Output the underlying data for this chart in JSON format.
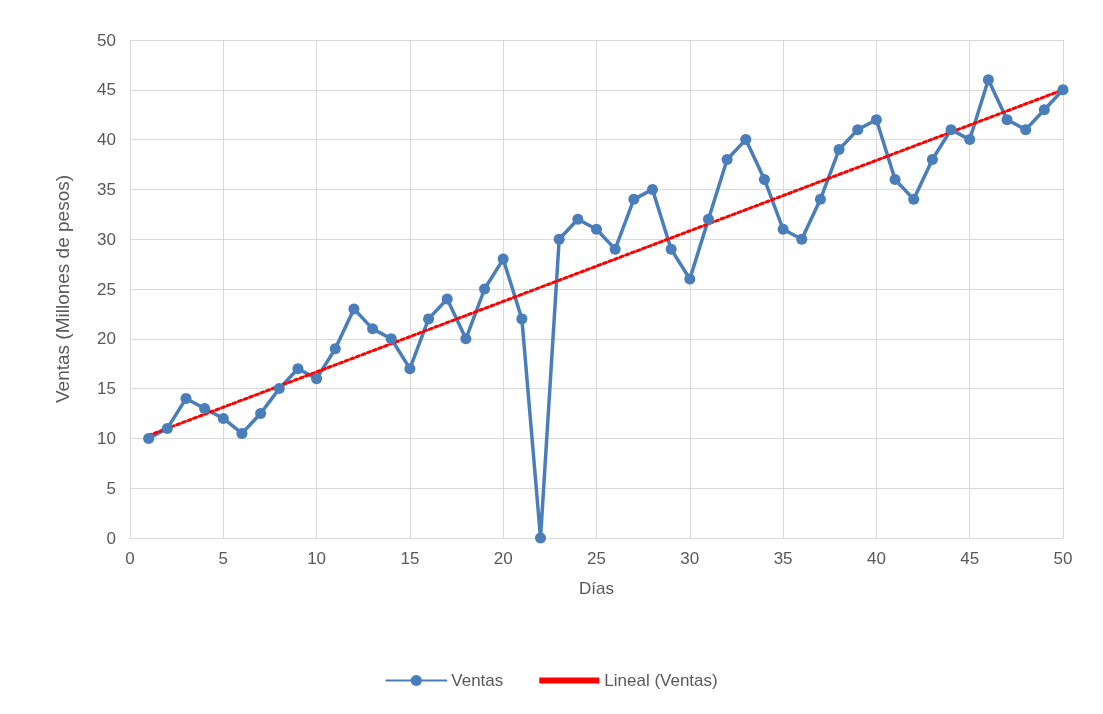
{
  "chart_data": {
    "type": "line",
    "xlabel": "Días",
    "ylabel": "Ventas (Millones de pesos)",
    "xlim": [
      0,
      50
    ],
    "xticks": [
      0,
      5,
      10,
      15,
      20,
      25,
      30,
      35,
      40,
      45,
      50
    ],
    "ylim": [
      0,
      50
    ],
    "yticks": [
      0,
      5,
      10,
      15,
      20,
      25,
      30,
      35,
      40,
      45,
      50
    ],
    "grid": true,
    "legend": "bottom",
    "marker": "circle",
    "line_style": "solid",
    "x": [
      1,
      2,
      3,
      4,
      5,
      6,
      7,
      8,
      9,
      10,
      11,
      12,
      13,
      14,
      15,
      16,
      17,
      18,
      19,
      20,
      21,
      22,
      23,
      24,
      25,
      26,
      27,
      28,
      29,
      30,
      31,
      32,
      33,
      34,
      35,
      36,
      37,
      38,
      39,
      40,
      41,
      42,
      43,
      44,
      45,
      46,
      47,
      48,
      49,
      50
    ],
    "series": [
      {
        "name": "Ventas",
        "color": "#4a7ebb",
        "values": [
          10,
          11,
          14,
          13,
          12,
          10.5,
          12.5,
          15,
          17,
          16,
          19,
          23,
          21,
          20,
          17,
          22,
          24,
          20,
          25,
          28,
          22,
          0,
          30,
          32,
          31,
          29,
          34,
          35,
          29,
          26,
          32,
          38,
          40,
          36,
          31,
          30,
          34,
          39,
          41,
          42,
          36,
          34,
          38,
          41,
          40,
          46,
          42,
          41,
          43,
          45
        ]
      },
      {
        "name": "Lineal (Ventas)",
        "color": "#ff0000",
        "x": [
          1,
          50
        ],
        "values": [
          10.3,
          45
        ],
        "marker": "none",
        "line_style": "dotted"
      }
    ]
  }
}
